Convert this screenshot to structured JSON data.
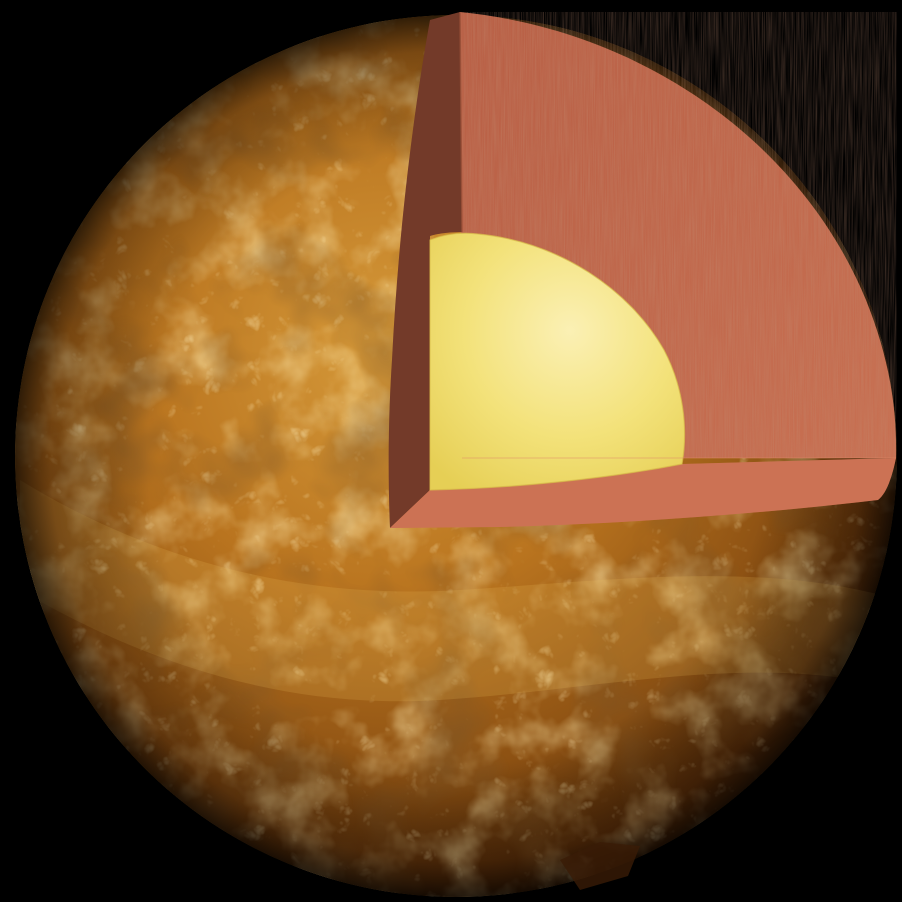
{
  "scene": {
    "subject": "planet-cutaway",
    "background_color": "#000000",
    "colors": {
      "surface_light": "#e7b24a",
      "surface_mid": "#b9741f",
      "surface_dark": "#4a2608",
      "mantle": "#c0654a",
      "mantle_light": "#d37a5a",
      "mantle_shadow": "#7a3f2c",
      "core": "#f3e27a",
      "core_highlight": "#fbf0b4",
      "core_edge": "#e6cf55"
    }
  }
}
